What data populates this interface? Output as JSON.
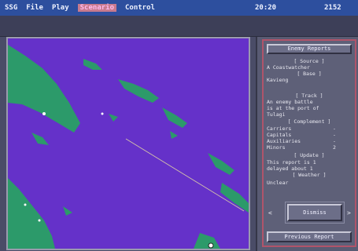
{
  "menu": {
    "items": [
      "SSG",
      "File",
      "Play",
      "Scenario",
      "Control"
    ],
    "active_index": 3,
    "clock_left": "20:20",
    "clock_right": "2152"
  },
  "report": {
    "top_button": "Enemy Reports",
    "source_header": "[ Source ]",
    "source_text": "A Coastwatcher",
    "base_header": "[ Base ]",
    "base_text": "Kavieng",
    "track_header": "[ Track ]",
    "track_lines": [
      "An enemy battle",
      "is at the port of",
      "Tulagi"
    ],
    "complement_header": "[ Complement ]",
    "complement_rows": [
      {
        "label": "Carriers",
        "value": "-"
      },
      {
        "label": "Capitals",
        "value": "-"
      },
      {
        "label": "Auxiliaries",
        "value": "-"
      },
      {
        "label": "Minors",
        "value": "2"
      }
    ],
    "update_header": "[ Update ]",
    "update_lines": [
      "This report is 1",
      "delayed about 1"
    ],
    "weather_header": "[ Weather ]",
    "weather_text": "Unclear",
    "prev_arrow": "<",
    "dismiss_button": "Dismiss",
    "next_arrow": ">",
    "previous_report_button": "Previous Report"
  },
  "colors": {
    "ocean": "#6531c9",
    "land": "#2c9a6a",
    "menubar": "#2d4f9e",
    "panel_border": "#b0546a"
  }
}
